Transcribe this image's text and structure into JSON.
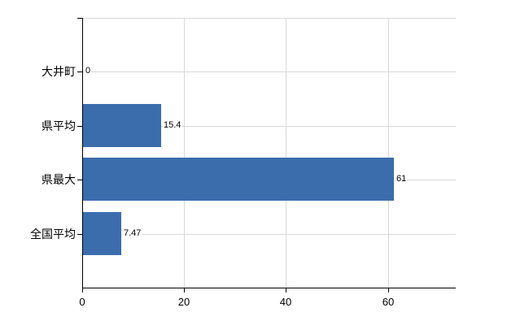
{
  "page": {
    "background": "#FFFFFF"
  },
  "chart_data": {
    "type": "bar",
    "orientation": "horizontal",
    "title": "",
    "categories": [
      "大井町",
      "県平均",
      "県最大",
      "全国平均"
    ],
    "values": [
      0,
      15.4,
      61,
      7.47
    ],
    "value_labels": [
      "0",
      "15.4",
      "61",
      "7.47"
    ],
    "x_ticks": [
      0,
      20,
      40,
      60
    ],
    "x_tick_labels": [
      "0",
      "20",
      "40",
      "60"
    ],
    "xlim": [
      0,
      73.3
    ],
    "grid": true,
    "legend": false,
    "bar_color": "#3B6DAD",
    "grid_color": "#D9D9D9",
    "axis_color": "#000000",
    "text_color": "#000000"
  }
}
